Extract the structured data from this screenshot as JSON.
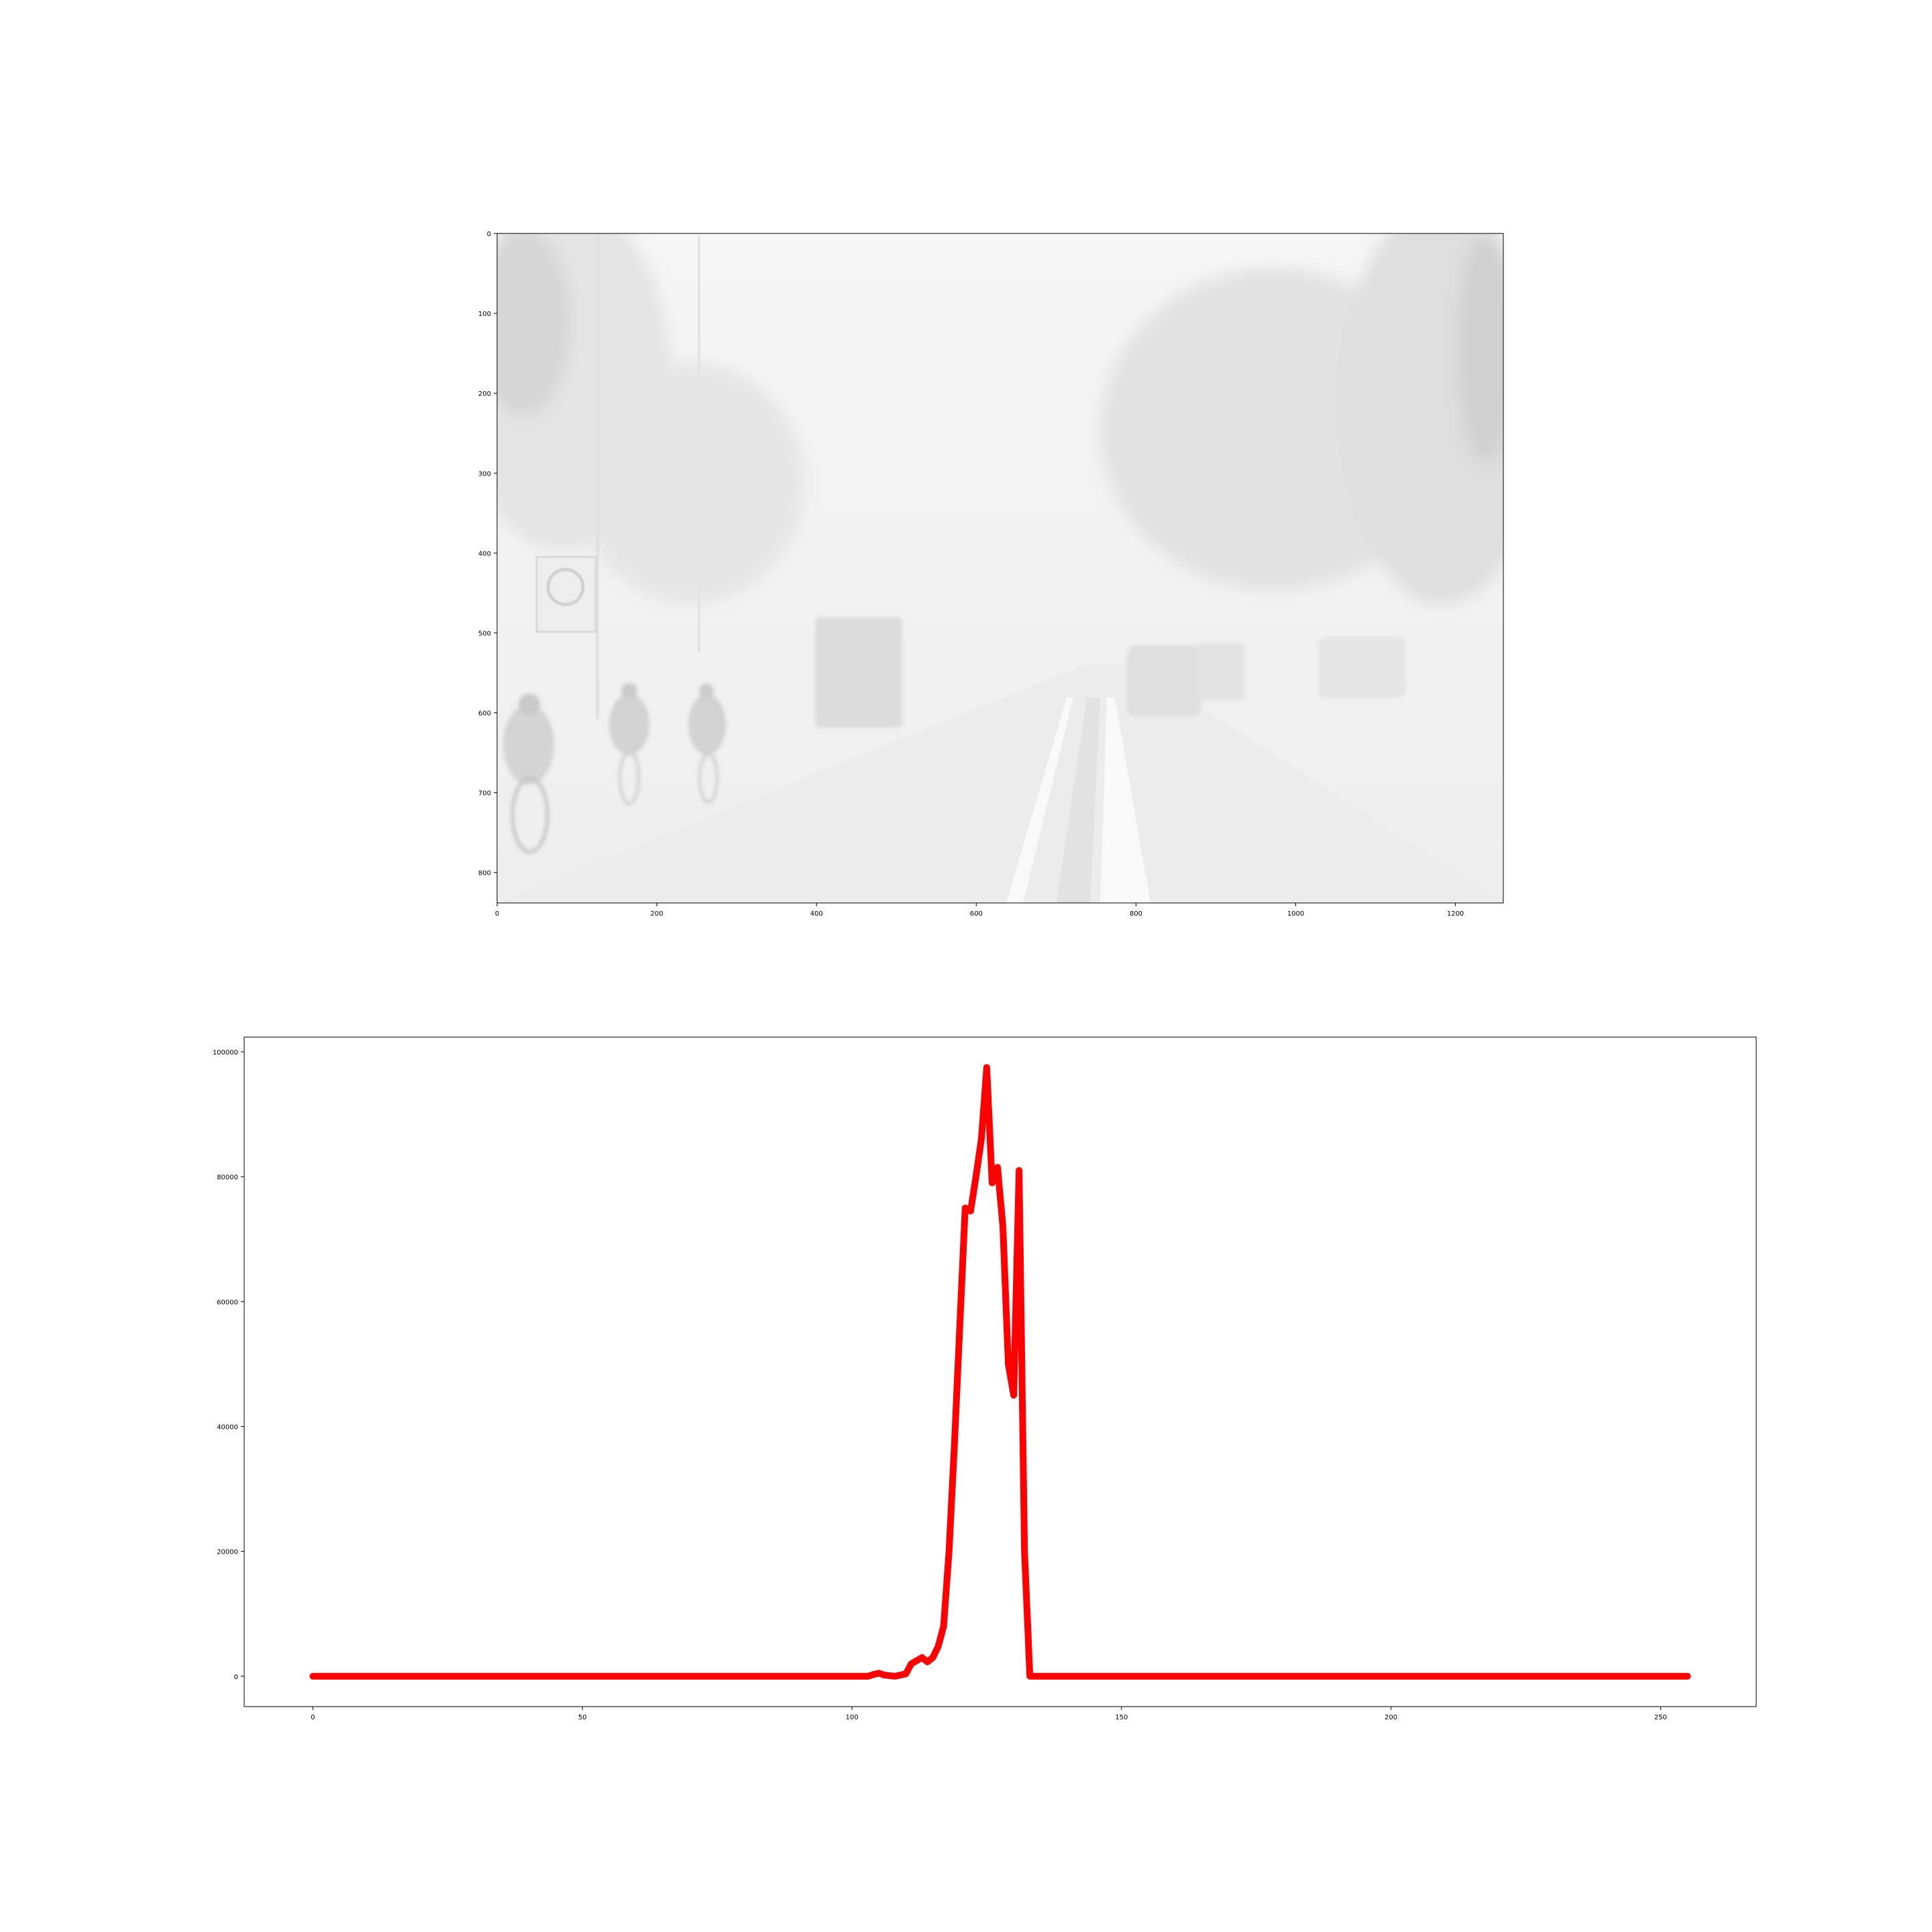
{
  "image_panel": {
    "x_ticks": [
      "0",
      "200",
      "400",
      "600",
      "800",
      "1000",
      "1200"
    ],
    "y_ticks": [
      "0",
      "100",
      "200",
      "300",
      "400",
      "500",
      "600",
      "700",
      "800"
    ],
    "x_range": [
      0,
      1260
    ],
    "y_range": [
      0,
      838
    ],
    "description_colors": {
      "fog": "#ebebeb",
      "frame": "#000000"
    }
  },
  "chart_data": {
    "type": "line",
    "title": "",
    "xlabel": "",
    "ylabel": "",
    "xlim": [
      -12.75,
      267.75
    ],
    "ylim": [
      -4850,
      102350
    ],
    "x_ticks": [
      0,
      50,
      100,
      150,
      200,
      250
    ],
    "x_tick_labels": [
      "0",
      "50",
      "100",
      "150",
      "200",
      "250"
    ],
    "y_ticks": [
      0,
      20000,
      40000,
      60000,
      80000,
      100000
    ],
    "y_tick_labels": [
      "0",
      "20000",
      "40000",
      "60000",
      "80000",
      "100000"
    ],
    "grid": false,
    "line_color": "#ff0000",
    "series": [
      {
        "x": [
          0,
          103,
          104,
          105,
          106,
          108,
          110,
          111,
          112,
          113,
          114,
          115,
          116,
          117,
          118,
          119,
          120,
          121,
          122,
          123,
          124,
          125,
          126,
          127,
          128,
          129,
          130,
          131,
          132,
          133,
          134,
          135,
          255
        ],
        "y": [
          0,
          0,
          300,
          500,
          200,
          0,
          400,
          2000,
          2500,
          3000,
          2300,
          3000,
          4800,
          8000,
          20000,
          37000,
          56000,
          75000,
          74500,
          80000,
          86000,
          97500,
          79000,
          81500,
          72000,
          50000,
          45000,
          81000,
          20000,
          0,
          0,
          0,
          0
        ]
      }
    ]
  }
}
